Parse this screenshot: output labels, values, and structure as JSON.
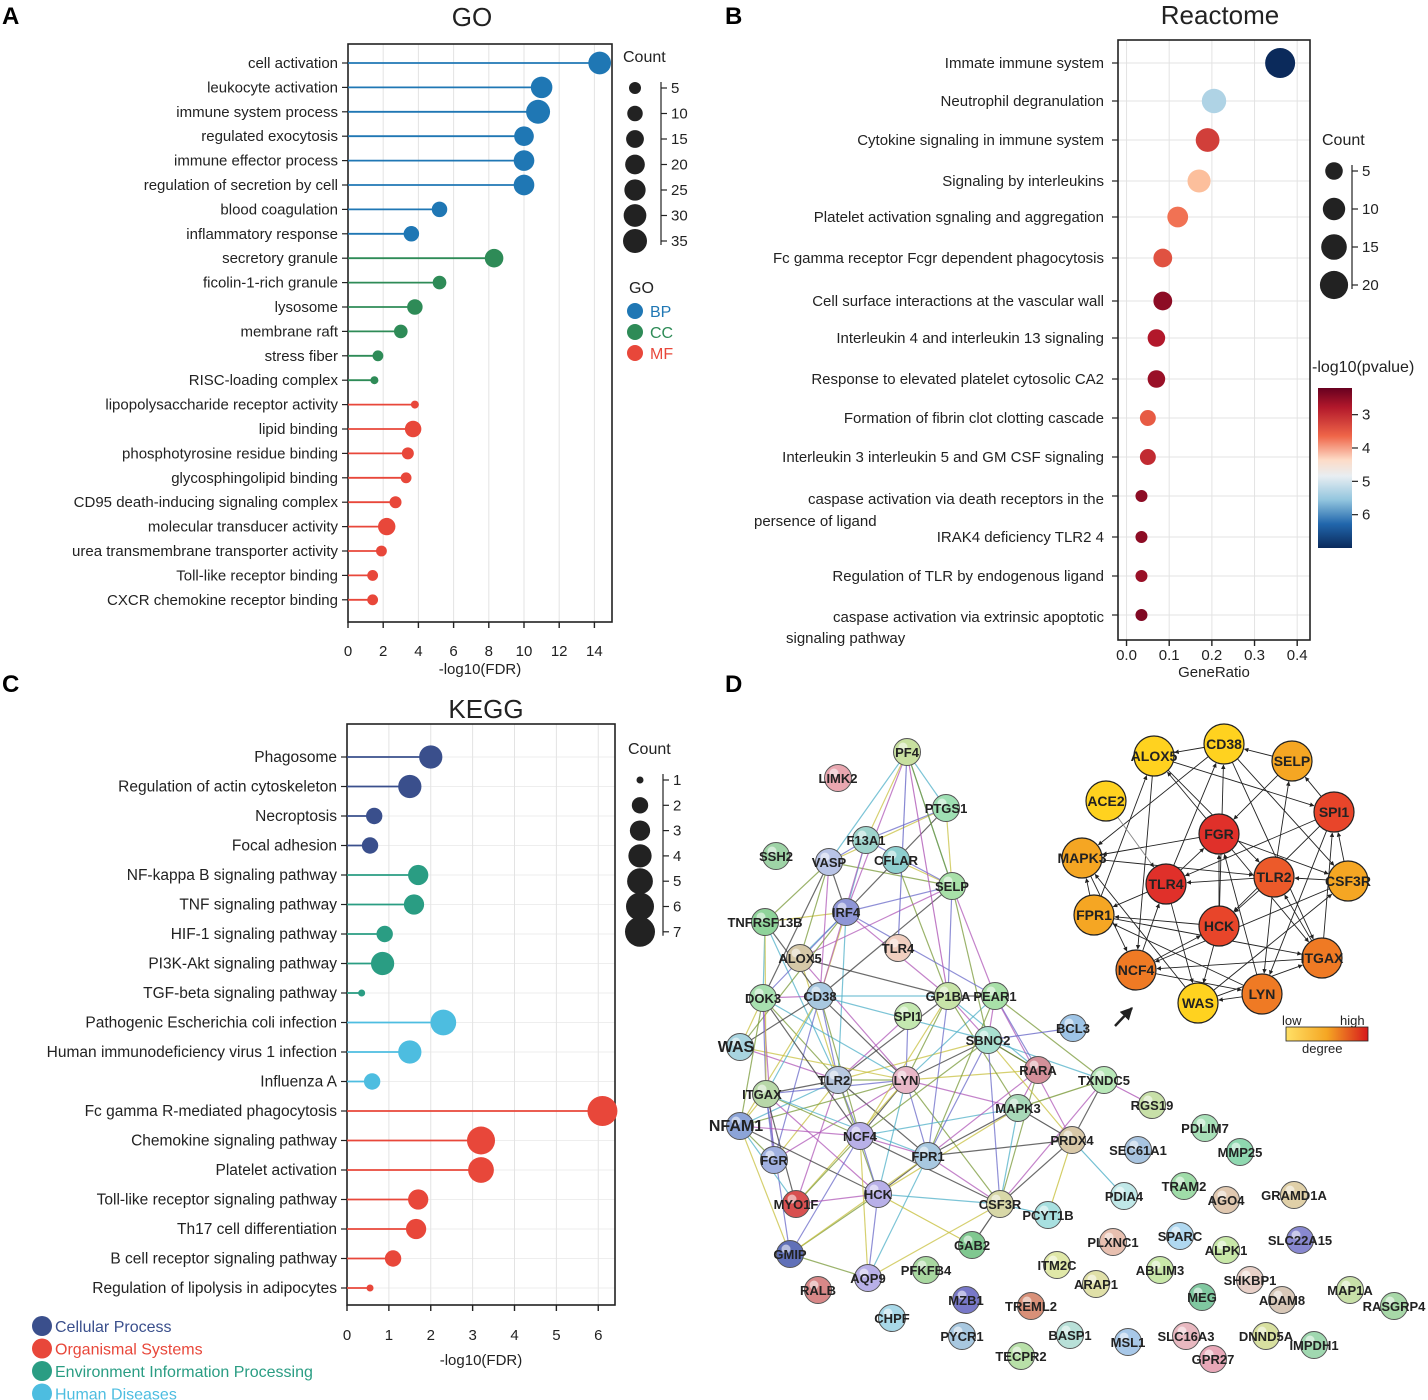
{
  "panels": {
    "A": "A",
    "B": "B",
    "C": "C",
    "D": "D"
  },
  "chart_data": [
    {
      "panel": "A",
      "type": "scatter",
      "title": "GO",
      "xlabel": "-log10(FDR)",
      "ylabel": "",
      "xlim": [
        0,
        15
      ],
      "xticks": [
        0,
        2,
        4,
        6,
        8,
        10,
        12,
        14
      ],
      "grid": true,
      "size_legend": {
        "title": "Count",
        "values": [
          5,
          10,
          15,
          20,
          25,
          30,
          35
        ]
      },
      "color_legend": {
        "title": "GO",
        "items": [
          {
            "label": "BP",
            "color": "#1f77b4"
          },
          {
            "label": "CC",
            "color": "#2e8b57"
          },
          {
            "label": "MF",
            "color": "#e8473a"
          }
        ]
      },
      "points": [
        {
          "term": "cell activation",
          "x": 14.3,
          "count": 30,
          "group": "BP"
        },
        {
          "term": "leukocyte activation",
          "x": 11.0,
          "count": 26,
          "group": "BP"
        },
        {
          "term": "immune system process",
          "x": 10.8,
          "count": 35,
          "group": "BP"
        },
        {
          "term": "regulated exocytosis",
          "x": 10.0,
          "count": 20,
          "group": "BP"
        },
        {
          "term": "immune effector process",
          "x": 10.0,
          "count": 23,
          "group": "BP"
        },
        {
          "term": "regulation of secretion by cell",
          "x": 10.0,
          "count": 23,
          "group": "BP"
        },
        {
          "term": "blood coagulation",
          "x": 5.2,
          "count": 10,
          "group": "BP"
        },
        {
          "term": "inflammatory response",
          "x": 3.6,
          "count": 10,
          "group": "BP"
        },
        {
          "term": "secretory granule",
          "x": 8.3,
          "count": 17,
          "group": "CC"
        },
        {
          "term": "ficolin-1-rich granule",
          "x": 5.2,
          "count": 7,
          "group": "CC"
        },
        {
          "term": "lysosome",
          "x": 3.8,
          "count": 10,
          "group": "CC"
        },
        {
          "term": "membrane raft",
          "x": 3.0,
          "count": 7,
          "group": "CC"
        },
        {
          "term": "stress fiber",
          "x": 1.7,
          "count": 4,
          "group": "CC"
        },
        {
          "term": "RISC-loading complex",
          "x": 1.5,
          "count": 3,
          "group": "CC"
        },
        {
          "term": "lipopolysaccharide receptor activity",
          "x": 3.8,
          "count": 3,
          "group": "MF"
        },
        {
          "term": "lipid binding",
          "x": 3.7,
          "count": 12,
          "group": "MF"
        },
        {
          "term": "phosphotyrosine residue binding",
          "x": 3.4,
          "count": 5,
          "group": "MF"
        },
        {
          "term": "glycosphingolipid binding",
          "x": 3.3,
          "count": 4,
          "group": "MF"
        },
        {
          "term": "CD95 death-inducing signaling complex",
          "x": 2.7,
          "count": 5,
          "group": "MF"
        },
        {
          "term": "molecular transducer activity",
          "x": 2.2,
          "count": 14,
          "group": "MF"
        },
        {
          "term": "urea transmembrane transporter activity",
          "x": 1.9,
          "count": 4,
          "group": "MF"
        },
        {
          "term": "Toll-like receptor binding",
          "x": 1.4,
          "count": 4,
          "group": "MF"
        },
        {
          "term": "CXCR chemokine receptor binding",
          "x": 1.4,
          "count": 4,
          "group": "MF"
        }
      ]
    },
    {
      "panel": "B",
      "type": "scatter",
      "title": "Reactome",
      "xlabel": "GeneRatio",
      "ylabel": "",
      "xlim": [
        -0.02,
        0.43
      ],
      "xticks": [
        0.0,
        0.1,
        0.2,
        0.3,
        0.4
      ],
      "grid": true,
      "size_legend": {
        "title": "Count",
        "values": [
          5,
          10,
          15,
          20
        ]
      },
      "colorbar": {
        "title": "-log10(pvalue)",
        "ticks": [
          3,
          4,
          5,
          6
        ],
        "range": [
          2.2,
          7.0
        ]
      },
      "points": [
        {
          "term": "Immate immune system",
          "x": 0.36,
          "count": 24,
          "pvalue": 7.0
        },
        {
          "term": "Neutrophil degranulation",
          "x": 0.205,
          "count": 13,
          "pvalue": 5.2
        },
        {
          "term": "Cytokine signaling in immune system",
          "x": 0.19,
          "count": 12,
          "pvalue": 3.2
        },
        {
          "term": "Signaling by interleukins",
          "x": 0.17,
          "count": 11,
          "pvalue": 4.3
        },
        {
          "term": "Platelet activation sgnaling and aggregation",
          "x": 0.12,
          "count": 8,
          "pvalue": 3.7
        },
        {
          "term": "Fc gamma receptor Fcgr dependent phagocytosis",
          "x": 0.085,
          "count": 6,
          "pvalue": 3.4
        },
        {
          "term": "Cell surface interactions at the vascular wall",
          "x": 0.085,
          "count": 6,
          "pvalue": 2.5
        },
        {
          "term": "Interleukin 4 and interleukin 13 signaling",
          "x": 0.07,
          "count": 5,
          "pvalue": 2.8
        },
        {
          "term": "Response to elevated platelet cytosolic CA2",
          "x": 0.07,
          "count": 5,
          "pvalue": 2.6
        },
        {
          "term": "Formation of fibrin clot clotting cascade",
          "x": 0.05,
          "count": 4,
          "pvalue": 3.5
        },
        {
          "term": "Interleukin 3 interleukin 5 and GM CSF signaling",
          "x": 0.05,
          "count": 4,
          "pvalue": 3.0
        },
        {
          "term": "caspase activation via death receptors  in the persence of ligand",
          "x": 0.035,
          "count": 3,
          "pvalue": 2.5
        },
        {
          "term": "IRAK4 deficiency TLR2 4",
          "x": 0.035,
          "count": 3,
          "pvalue": 2.5
        },
        {
          "term": "Regulation of TLR by endogenous ligand",
          "x": 0.035,
          "count": 3,
          "pvalue": 2.6
        },
        {
          "term": "caspase activation via extrinsic apoptotic signaling pathway",
          "x": 0.035,
          "count": 3,
          "pvalue": 2.4
        }
      ]
    },
    {
      "panel": "C",
      "type": "scatter",
      "title": "KEGG",
      "xlabel": "-log10(FDR)",
      "ylabel": "",
      "xlim": [
        0,
        6.4
      ],
      "xticks": [
        0,
        1,
        2,
        3,
        4,
        5,
        6
      ],
      "grid": true,
      "size_legend": {
        "title": "Count",
        "values": [
          1,
          2,
          3,
          4,
          5,
          6,
          7
        ]
      },
      "color_legend": {
        "title": "",
        "items": [
          {
            "label": "Cellular Process",
            "color": "#3a4f8c"
          },
          {
            "label": "Organismal Systems",
            "color": "#e8473a"
          },
          {
            "label": "Environment Information Processing",
            "color": "#2a9d83"
          },
          {
            "label": "Human Diseases",
            "color": "#4dbde0"
          }
        ]
      },
      "points": [
        {
          "term": "Phagosome",
          "x": 2.0,
          "count": 4,
          "group": "Cellular Process"
        },
        {
          "term": "Regulation of actin cytoskeleton",
          "x": 1.5,
          "count": 4,
          "group": "Cellular Process"
        },
        {
          "term": "Necroptosis",
          "x": 0.65,
          "count": 2,
          "group": "Cellular Process"
        },
        {
          "term": "Focal adhesion",
          "x": 0.55,
          "count": 2,
          "group": "Cellular Process"
        },
        {
          "term": "NF-kappa B signaling pathway",
          "x": 1.7,
          "count": 3,
          "group": "Environment Information Processing"
        },
        {
          "term": "TNF signaling pathway",
          "x": 1.6,
          "count": 3,
          "group": "Environment Information Processing"
        },
        {
          "term": "HIF-1 signaling pathway",
          "x": 0.9,
          "count": 2,
          "group": "Environment Information Processing"
        },
        {
          "term": "PI3K-Akt signaling pathway",
          "x": 0.85,
          "count": 4,
          "group": "Environment Information Processing"
        },
        {
          "term": "TGF-beta signaling pathway",
          "x": 0.35,
          "count": 1,
          "group": "Environment Information Processing"
        },
        {
          "term": "Pathogenic Escherichia coli infection",
          "x": 2.3,
          "count": 5,
          "group": "Human Diseases"
        },
        {
          "term": "Human immunodeficiency virus 1 infection",
          "x": 1.5,
          "count": 4,
          "group": "Human Diseases"
        },
        {
          "term": "Influenza A",
          "x": 0.6,
          "count": 2,
          "group": "Human Diseases"
        },
        {
          "term": "Fc gamma R-mediated phagocytosis",
          "x": 6.1,
          "count": 7,
          "group": "Organismal Systems"
        },
        {
          "term": "Chemokine signaling pathway",
          "x": 3.2,
          "count": 6,
          "group": "Organismal Systems"
        },
        {
          "term": "Platelet activation",
          "x": 3.2,
          "count": 5,
          "group": "Organismal Systems"
        },
        {
          "term": "Toll-like receptor signaling pathway",
          "x": 1.7,
          "count": 3,
          "group": "Organismal Systems"
        },
        {
          "term": "Th17 cell differentiation",
          "x": 1.65,
          "count": 3,
          "group": "Organismal Systems"
        },
        {
          "term": "B cell receptor signaling pathway",
          "x": 1.1,
          "count": 2,
          "group": "Organismal Systems"
        },
        {
          "term": "Regulation of lipolysis in adipocytes",
          "x": 0.55,
          "count": 1,
          "group": "Organismal Systems"
        }
      ]
    }
  ],
  "network": {
    "nodes": [
      "PF4",
      "LIMK2",
      "PTGS1",
      "F13A1",
      "SSH2",
      "VASP",
      "CFLAR",
      "SELP",
      "IRF4",
      "TNFRSF13B",
      "TLR4",
      "ALOX5",
      "GP1BA",
      "DOK3",
      "CD38",
      "PEAR1",
      "BCL3",
      "SPI1",
      "WAS",
      "SBNO2",
      "RARA",
      "TXNDC5",
      "ITGAX",
      "TLR2",
      "LYN",
      "MAPK3",
      "RGS19",
      "NFAM1",
      "PDLIM7",
      "NCF4",
      "PRDX4",
      "SEC61A1",
      "MMP25",
      "FGR",
      "FPR1",
      "TRAM2",
      "GRAMD1A",
      "MYO1F",
      "HCK",
      "CSF3R",
      "PCYT1B",
      "PDIA4",
      "AGO4",
      "SPARC",
      "SLC22A15",
      "PLXNC1",
      "ALPK1",
      "GMIP",
      "GAB2",
      "ITM2C",
      "ABLIM3",
      "SHKBP1",
      "MAP1A",
      "RALB",
      "AQP9",
      "PFKFB4",
      "ARAP1",
      "MEG",
      "ADAM8",
      "RASGRP4",
      "CHPF",
      "MZB1",
      "TREML2",
      "PYCR1",
      "BASP1",
      "MSL1",
      "SLC16A3",
      "DNND5A",
      "IMPDH1",
      "TECPR2",
      "GPR27"
    ],
    "hub_nodes": [
      "ACE2",
      "ALOX5",
      "CD38",
      "SELP",
      "SPI1",
      "MAPK3",
      "FGR",
      "TLR4",
      "TLR2",
      "CSF3R",
      "FPR1",
      "HCK",
      "NCF4",
      "ITGAX",
      "WAS",
      "LYN"
    ],
    "hub_legend": {
      "low": "low",
      "high": "high",
      "title": "degree"
    }
  }
}
